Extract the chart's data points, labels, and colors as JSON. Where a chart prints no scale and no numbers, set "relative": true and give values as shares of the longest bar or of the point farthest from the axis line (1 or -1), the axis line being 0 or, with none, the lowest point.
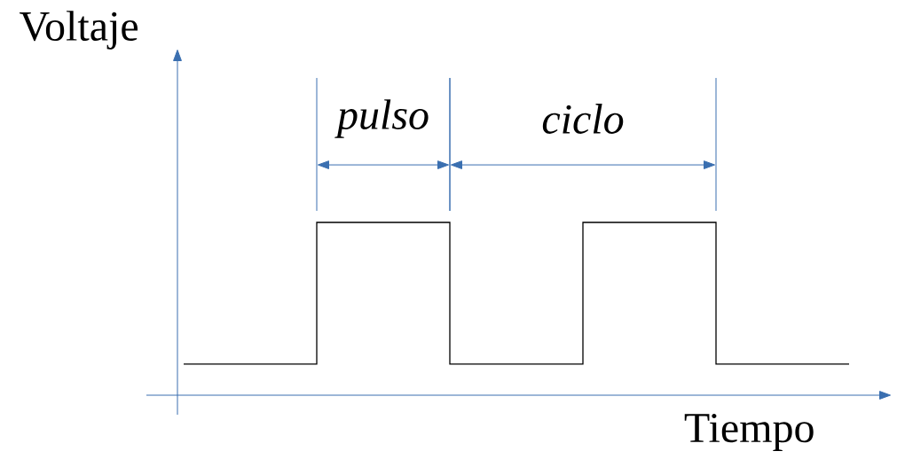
{
  "chart_data": {
    "type": "step",
    "relative": true,
    "xlabel": "Tiempo",
    "ylabel": "Voltaje",
    "color": "#000000",
    "categories": [
      null,
      null,
      null,
      null,
      null,
      null
    ],
    "values": [
      0.18,
      1,
      0.18,
      1,
      0.18,
      0.18
    ],
    "annotations": [
      "pulso",
      "ciclo"
    ]
  }
}
